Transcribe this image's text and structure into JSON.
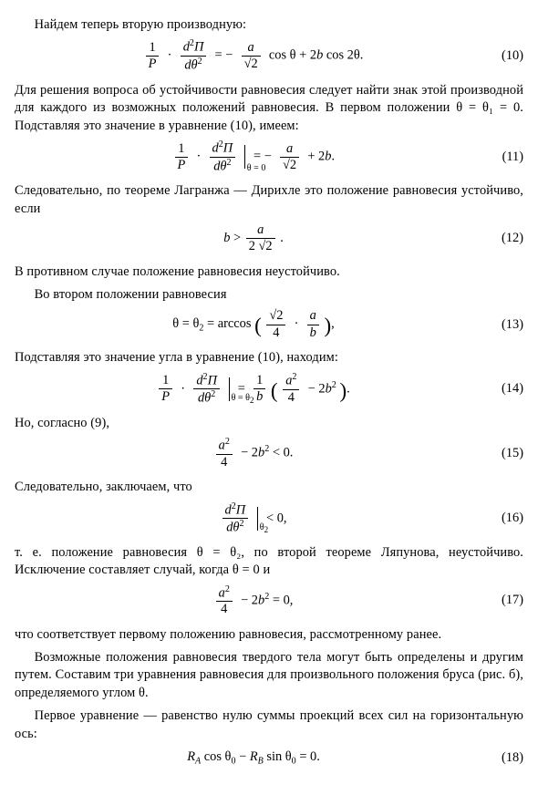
{
  "p1": "Найдем теперь вторую производную:",
  "eq10": {
    "num": "(10)"
  },
  "p2": "Для решения вопроса об устойчивости равновесия следует найти знак этой производной для каждого из возможных положений равновесия. В первом положении θ = θ₁ = 0. Подставляя это значение в уравнение (10), имеем:",
  "eq11": {
    "num": "(11)"
  },
  "p3": "Следовательно, по теореме Лагранжа — Дирихле это положение равновесия устойчиво, если",
  "eq12": {
    "num": "(12)"
  },
  "p4": "В противном случае положение равновесия неустойчиво.",
  "p5": "Во втором положении равновесия",
  "eq13": {
    "num": "(13)"
  },
  "p6": "Подставляя это значение угла в уравнение (10), находим:",
  "eq14": {
    "num": "(14)"
  },
  "p7": "Но, согласно (9),",
  "eq15": {
    "num": "(15)"
  },
  "p8": "Следовательно, заключаем, что",
  "eq16": {
    "num": "(16)"
  },
  "p9": "т. е. положение равновесия θ = θ₂, по второй теореме Ляпунова, неустойчиво. Исключение составляет случай, когда θ = 0 и",
  "eq17": {
    "num": "(17)"
  },
  "p10": "что соответствует первому положению равновесия, рассмотренному ранее.",
  "p11": "Возможные положения равновесия твердого тела могут быть определены и другим путем. Составим три уравнения равновесия для произвольного положения бруса (рис. б), определяемого углом θ.",
  "p12": "Первое уравнение — равенство нулю суммы проекций всех сил на горизонтальную ось:",
  "eq18": {
    "num": "(18)"
  }
}
